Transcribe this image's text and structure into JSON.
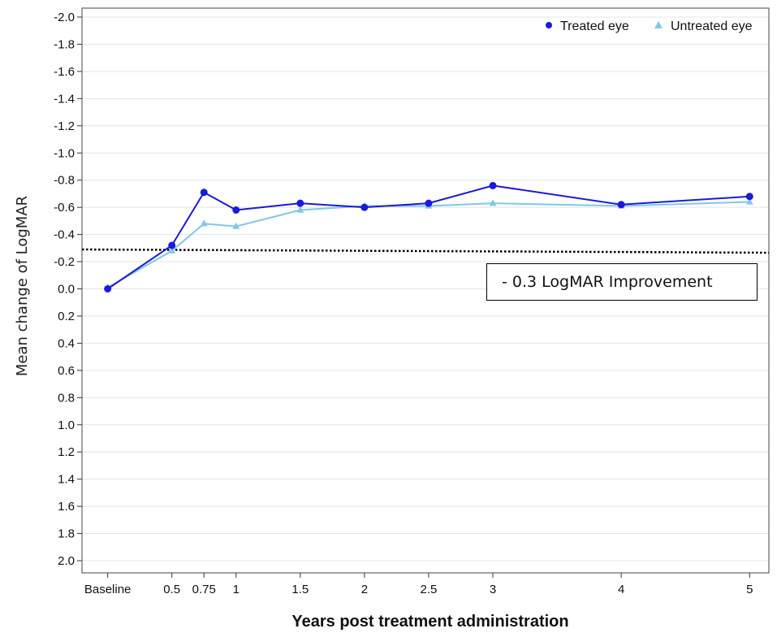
{
  "chart_data": {
    "type": "line",
    "title": "",
    "xlabel": "Years post treatment administration",
    "ylabel": "Mean change of LogMAR",
    "x": [
      0,
      0.5,
      0.75,
      1,
      1.5,
      2,
      2.5,
      3,
      4,
      5
    ],
    "x_tick_values": [
      0,
      0.5,
      0.75,
      1,
      1.5,
      2,
      2.5,
      3,
      4,
      5
    ],
    "x_tick_labels": [
      "Baseline",
      "0.5",
      "0.75",
      "1",
      "1.5",
      "2",
      "2.5",
      "3",
      "4",
      "5"
    ],
    "xlim": [
      -0.2,
      5.15
    ],
    "y_inverted": true,
    "ylim": [
      -2.0,
      2.0
    ],
    "y_tick_values": [
      -2.0,
      -1.8,
      -1.6,
      -1.4,
      -1.2,
      -1.0,
      -0.8,
      -0.6,
      -0.4,
      -0.2,
      0.0,
      0.2,
      0.4,
      0.6,
      0.8,
      1.0,
      1.2,
      1.4,
      1.6,
      1.8,
      2.0
    ],
    "y_tick_labels": [
      "-2.0",
      "-1.8",
      "-1.6",
      "-1.4",
      "-1.2",
      "-1.0",
      "-0.8",
      "-0.6",
      "-0.4",
      "-0.2",
      "0.0",
      "0.2",
      "0.4",
      "0.6",
      "0.8",
      "1.0",
      "1.2",
      "1.4",
      "1.6",
      "1.8",
      "2.0"
    ],
    "grid": "horizontal",
    "legend_position": "top-right",
    "series": [
      {
        "name": "Treated eye",
        "marker": "circle",
        "color": "#1a1ae0",
        "values": [
          0.0,
          -0.32,
          -0.71,
          -0.58,
          -0.63,
          -0.6,
          -0.63,
          -0.76,
          -0.62,
          -0.68
        ]
      },
      {
        "name": "Untreated eye",
        "marker": "triangle",
        "color": "#7fc8ec",
        "values": [
          -0.01,
          -0.28,
          -0.48,
          -0.46,
          -0.58,
          -0.61,
          -0.61,
          -0.63,
          -0.61,
          -0.64
        ]
      }
    ],
    "reference_line": {
      "value": -0.29,
      "style": "dotted",
      "color": "#000000"
    },
    "annotation": "- 0.3 LogMAR Improvement"
  }
}
